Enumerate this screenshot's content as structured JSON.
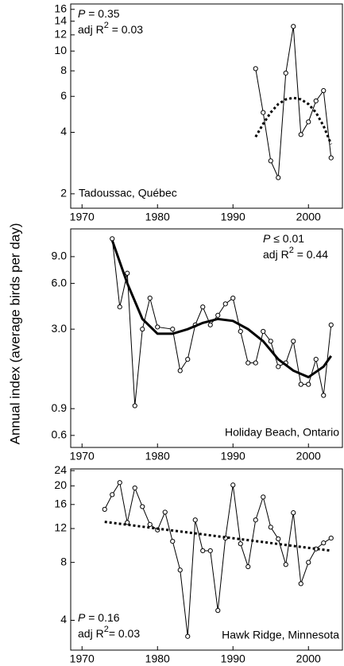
{
  "ylabel": "Annual index (average birds per day)",
  "chart_data": [
    {
      "type": "line",
      "log_y": true,
      "title": "Tadoussac, Québec",
      "annotation": [
        [
          "P",
          " = 0.35"
        ],
        [
          "adj R",
          "2",
          " = 0.03"
        ]
      ],
      "annotation_corner": "top-left",
      "title_corner": "bottom-left",
      "xlim": [
        1968.5,
        2004.5
      ],
      "xticks": [
        1970,
        1980,
        1990,
        2000
      ],
      "ylim": [
        1.7,
        17
      ],
      "yticks": [
        2,
        4,
        6,
        8,
        10,
        12,
        14,
        16
      ],
      "series": [
        {
          "color": "#000000",
          "style": "markers",
          "x": [
            1993,
            1994,
            1995,
            1996,
            1997,
            1998,
            1999,
            2000,
            2001,
            2002,
            2003
          ],
          "values": [
            8.2,
            5.0,
            2.9,
            2.4,
            7.8,
            13.2,
            3.9,
            4.5,
            5.7,
            6.4,
            3.0
          ]
        },
        {
          "color": "#000000",
          "style": "dotted",
          "x": [
            1993,
            1994,
            1995,
            1996,
            1997,
            1998,
            1999,
            2000,
            2001,
            2002,
            2003
          ],
          "values": [
            3.8,
            4.4,
            5.0,
            5.5,
            5.8,
            5.9,
            5.8,
            5.5,
            5.0,
            4.3,
            3.5
          ]
        }
      ]
    },
    {
      "type": "line",
      "log_y": true,
      "title": "Holiday Beach, Ontario",
      "annotation": [
        [
          "P",
          " ≤ 0.01"
        ],
        [
          "adj R",
          "2",
          " = 0.44"
        ]
      ],
      "annotation_corner": "top-right",
      "title_corner": "bottom-right",
      "xlim": [
        1968.5,
        2004.5
      ],
      "xticks": [
        1970,
        1980,
        1990,
        2000
      ],
      "ylim": [
        0.5,
        13.7
      ],
      "yticks": [
        0.6,
        0.9,
        {
          "value": 3,
          "label": "3.0"
        },
        {
          "value": 6,
          "label": "6.0"
        },
        {
          "value": 9,
          "label": "9.0"
        }
      ],
      "series": [
        {
          "color": "#000000",
          "style": "markers",
          "x": [
            1974,
            1975,
            1976,
            1977,
            1978,
            1979,
            1980,
            1982,
            1983,
            1984,
            1985,
            1986,
            1987,
            1988,
            1989,
            1990,
            1991,
            1992,
            1993,
            1994,
            1995,
            1996,
            1997,
            1998,
            1999,
            2000,
            2001,
            2002,
            2003
          ],
          "values": [
            11.8,
            4.2,
            7.0,
            0.94,
            3.0,
            4.8,
            3.1,
            3.0,
            1.6,
            1.9,
            3.2,
            4.2,
            3.2,
            3.7,
            4.4,
            4.8,
            2.9,
            1.8,
            1.8,
            2.9,
            2.5,
            1.7,
            1.8,
            2.5,
            1.3,
            1.3,
            1.9,
            1.1,
            3.2
          ]
        },
        {
          "color": "#000000",
          "style": "thick",
          "x": [
            1974,
            1976,
            1978,
            1980,
            1982,
            1984,
            1986,
            1988,
            1990,
            1992,
            1994,
            1996,
            1998,
            2000,
            2002,
            2003
          ],
          "values": [
            11.5,
            6.0,
            3.5,
            2.8,
            2.8,
            3.0,
            3.3,
            3.5,
            3.4,
            3.0,
            2.5,
            1.9,
            1.6,
            1.45,
            1.7,
            2.0
          ]
        }
      ]
    },
    {
      "type": "line",
      "log_y": true,
      "title": "Hawk Ridge, Minnesota",
      "annotation": [
        [
          "P",
          " = 0.16"
        ],
        [
          "adj R",
          "2",
          "= 0.03"
        ]
      ],
      "annotation_corner": "bottom-left",
      "title_corner": "bottom-right",
      "xlim": [
        1968.5,
        2004.5
      ],
      "xticks": [
        1970,
        1980,
        1990,
        2000
      ],
      "ylim": [
        2.8,
        24.5
      ],
      "yticks": [
        4,
        8,
        12,
        16,
        20,
        24
      ],
      "series": [
        {
          "color": "#000000",
          "style": "markers",
          "x": [
            1973,
            1974,
            1975,
            1976,
            1977,
            1978,
            1979,
            1980,
            1981,
            1982,
            1983,
            1984,
            1985,
            1986,
            1987,
            1988,
            1989,
            1990,
            1991,
            1992,
            1993,
            1994,
            1995,
            1996,
            1997,
            1998,
            1999,
            2000,
            2001,
            2002,
            2003
          ],
          "values": [
            15.1,
            18.0,
            20.8,
            12.9,
            19.5,
            15.6,
            12.6,
            11.8,
            14.6,
            10.3,
            7.3,
            3.3,
            13.3,
            9.2,
            9.2,
            4.5,
            10.7,
            20.2,
            10.0,
            7.6,
            13.3,
            17.5,
            12.2,
            10.6,
            7.8,
            14.5,
            6.2,
            8.0,
            9.4,
            10.1,
            10.7
          ]
        },
        {
          "color": "#000000",
          "style": "dotted",
          "x": [
            1973,
            2003
          ],
          "values": [
            13.0,
            9.2
          ]
        }
      ]
    }
  ]
}
